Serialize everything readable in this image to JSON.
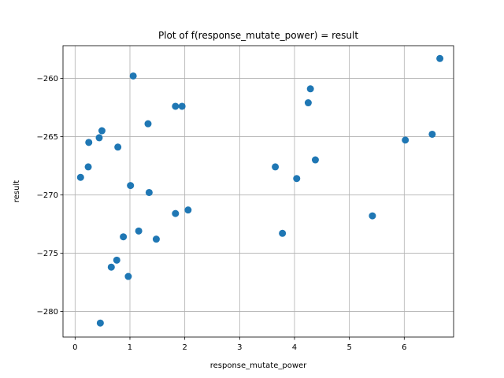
{
  "chart_data": {
    "type": "scatter",
    "title": "Plot of f(response_mutate_power) = result",
    "xlabel": "response_mutate_power",
    "ylabel": "result",
    "xlim": [
      -0.22,
      6.9
    ],
    "ylim": [
      -282.2,
      -257.2
    ],
    "xticks": [
      0,
      1,
      2,
      3,
      4,
      5,
      6
    ],
    "yticks": [
      -280,
      -275,
      -270,
      -265,
      -260
    ],
    "grid": true,
    "marker_color": "#1f77b4",
    "points": [
      {
        "x": 0.1,
        "y": -268.5
      },
      {
        "x": 0.24,
        "y": -267.6
      },
      {
        "x": 0.25,
        "y": -265.5
      },
      {
        "x": 0.44,
        "y": -265.1
      },
      {
        "x": 0.49,
        "y": -264.5
      },
      {
        "x": 0.46,
        "y": -281.0
      },
      {
        "x": 0.66,
        "y": -276.2
      },
      {
        "x": 0.76,
        "y": -275.6
      },
      {
        "x": 0.78,
        "y": -265.9
      },
      {
        "x": 0.88,
        "y": -273.6
      },
      {
        "x": 0.97,
        "y": -277.0
      },
      {
        "x": 1.01,
        "y": -269.2
      },
      {
        "x": 1.06,
        "y": -259.8
      },
      {
        "x": 1.16,
        "y": -273.1
      },
      {
        "x": 1.33,
        "y": -263.9
      },
      {
        "x": 1.35,
        "y": -269.8
      },
      {
        "x": 1.48,
        "y": -273.8
      },
      {
        "x": 1.83,
        "y": -262.4
      },
      {
        "x": 1.83,
        "y": -271.6
      },
      {
        "x": 1.95,
        "y": -262.4
      },
      {
        "x": 2.06,
        "y": -271.3
      },
      {
        "x": 3.65,
        "y": -267.6
      },
      {
        "x": 3.78,
        "y": -273.3
      },
      {
        "x": 4.04,
        "y": -268.6
      },
      {
        "x": 4.25,
        "y": -262.1
      },
      {
        "x": 4.29,
        "y": -260.9
      },
      {
        "x": 4.38,
        "y": -267.0
      },
      {
        "x": 5.42,
        "y": -271.8
      },
      {
        "x": 6.02,
        "y": -265.3
      },
      {
        "x": 6.51,
        "y": -264.8
      },
      {
        "x": 6.65,
        "y": -258.3
      }
    ]
  }
}
